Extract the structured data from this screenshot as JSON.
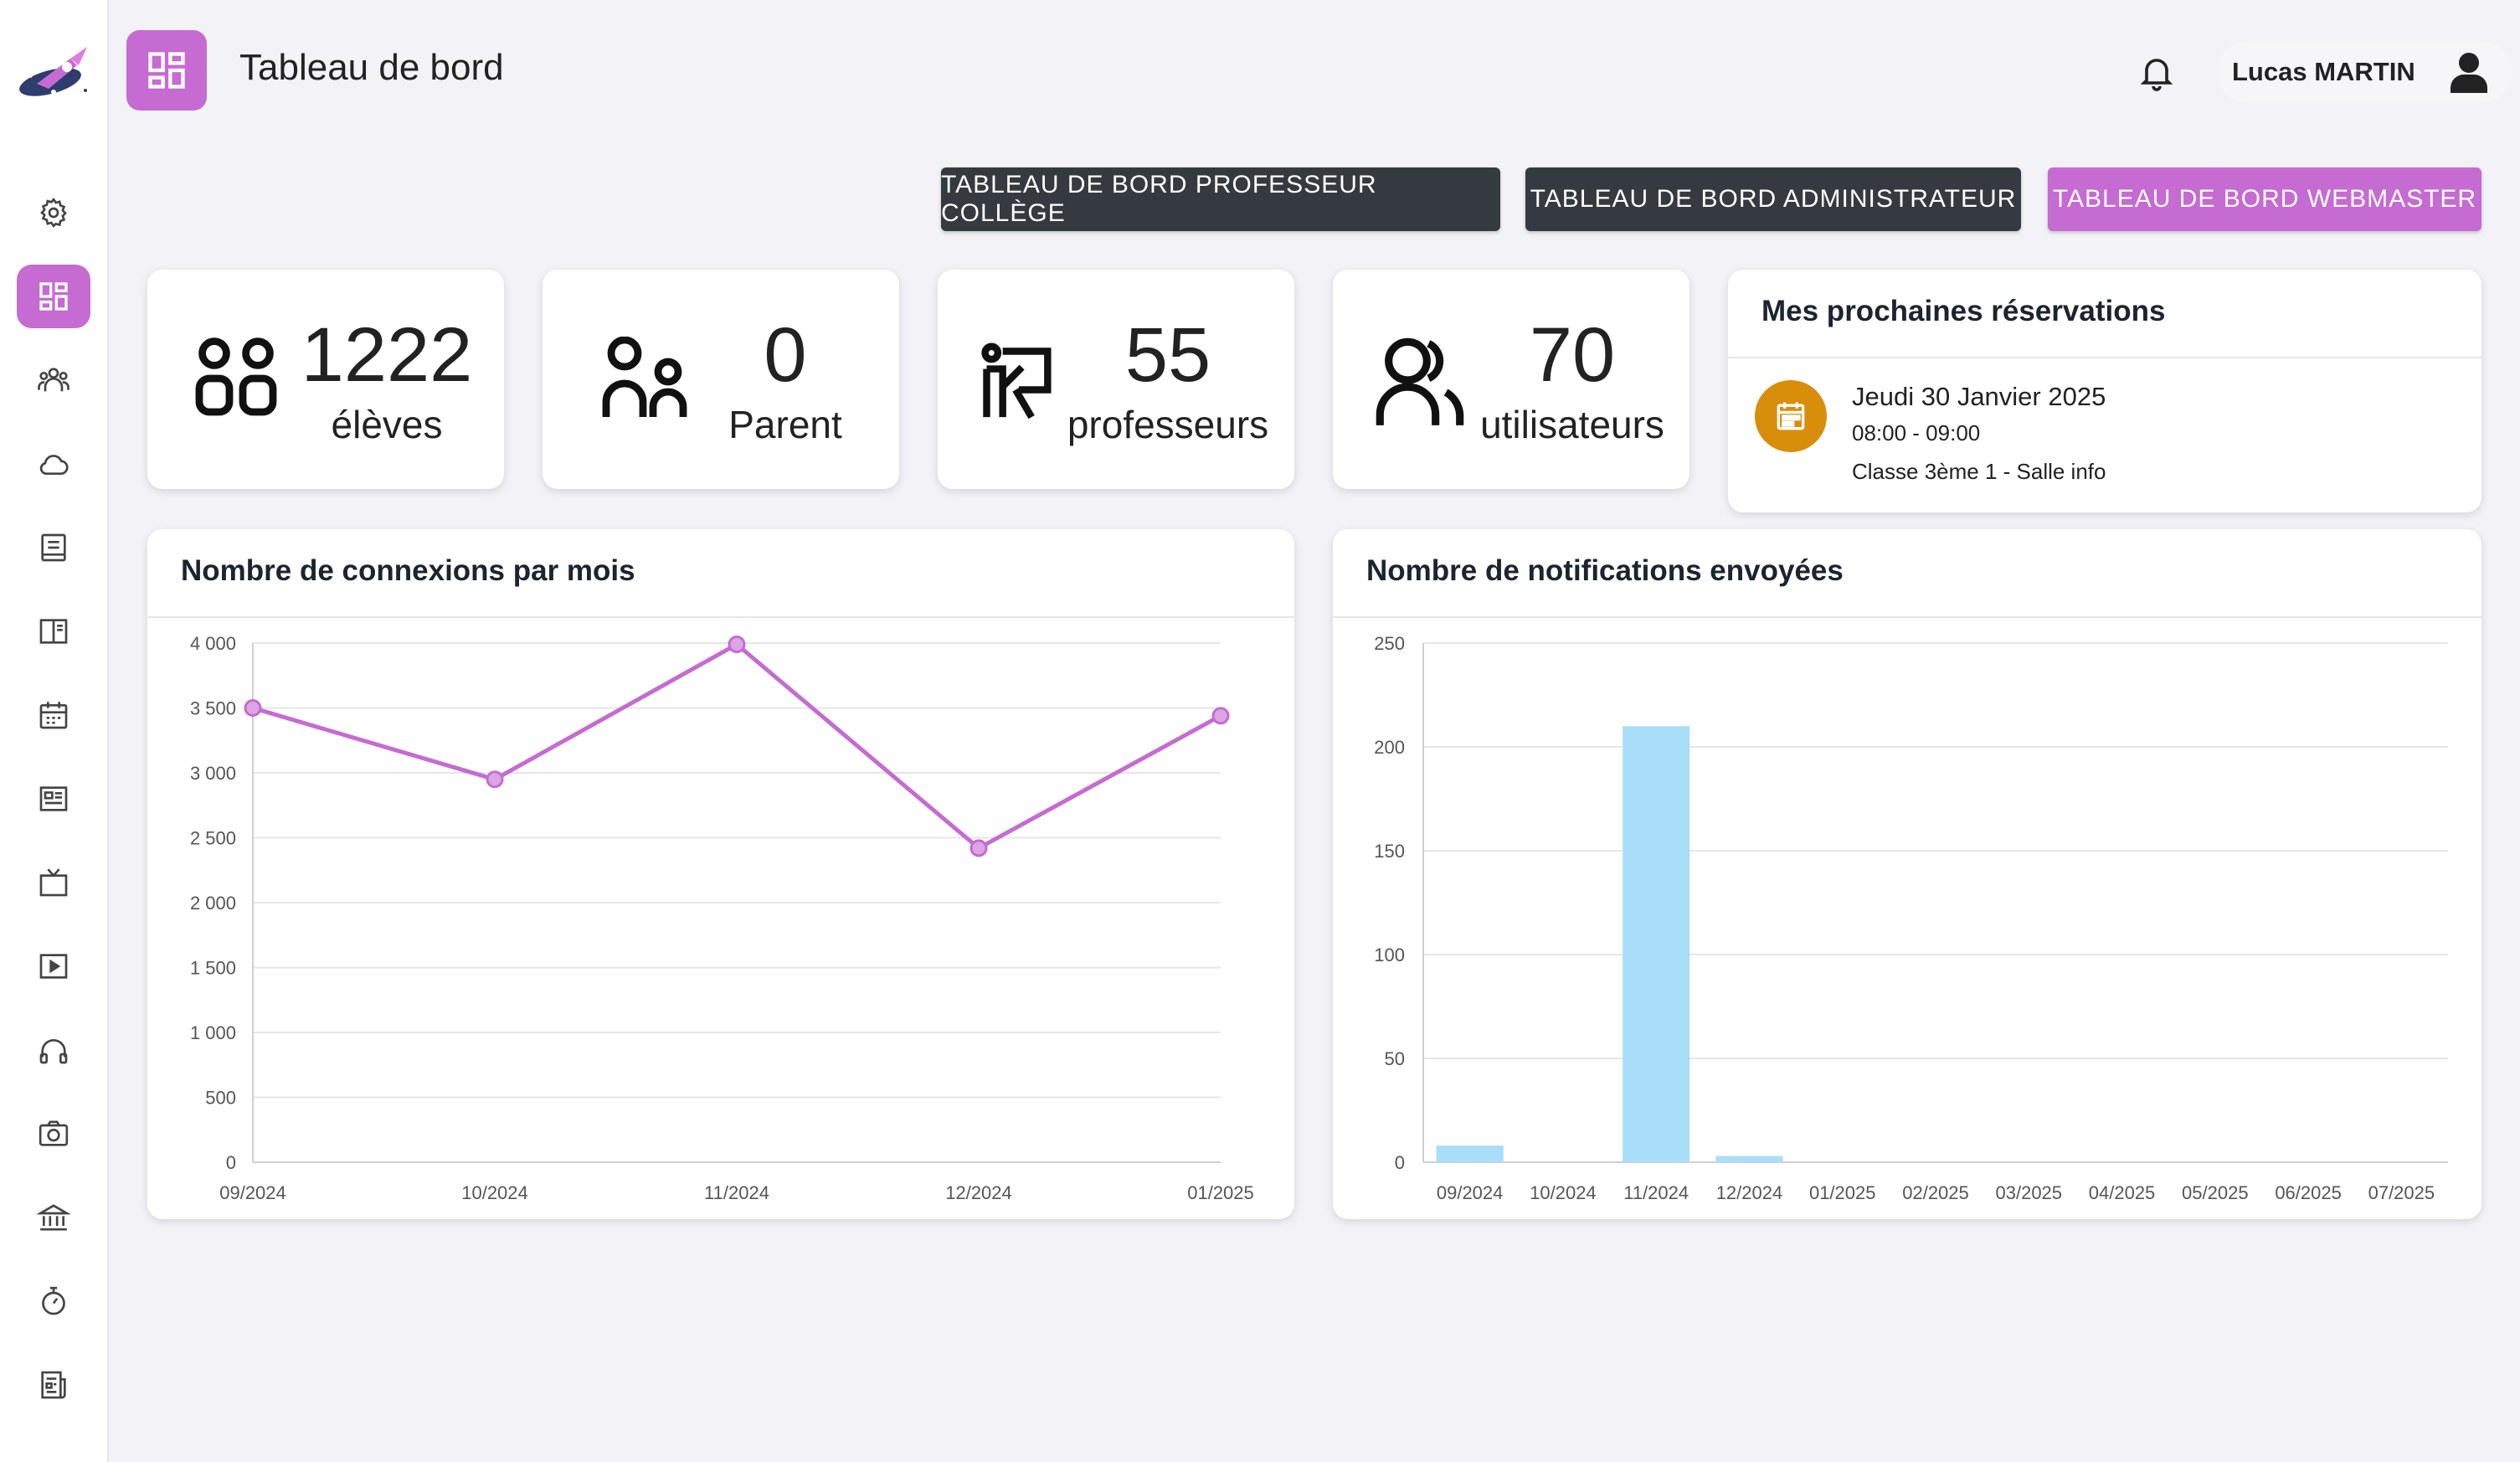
{
  "header": {
    "title": "Tableau de bord",
    "user_name": "Lucas MARTIN"
  },
  "sidebar": {
    "items": [
      {
        "icon": "gear-icon"
      },
      {
        "icon": "dashboard-icon",
        "active": true
      },
      {
        "icon": "users-icon"
      },
      {
        "icon": "cloud-icon"
      },
      {
        "icon": "document-icon"
      },
      {
        "icon": "book-icon"
      },
      {
        "icon": "calendar-icon"
      },
      {
        "icon": "newspaper-icon"
      },
      {
        "icon": "tv-icon"
      },
      {
        "icon": "play-icon"
      },
      {
        "icon": "headphones-icon"
      },
      {
        "icon": "camera-icon"
      },
      {
        "icon": "bank-icon"
      },
      {
        "icon": "timer-icon"
      },
      {
        "icon": "news-icon"
      }
    ]
  },
  "buttons": {
    "prof": "TABLEAU DE BORD PROFESSEUR COLLÈGE",
    "admin": "TABLEAU DE BORD ADMINISTRATEUR",
    "webmaster": "TABLEAU DE BORD WEBMASTER"
  },
  "stats": {
    "eleves": {
      "value": "1222",
      "label": "élèves"
    },
    "parents": {
      "value": "0",
      "label": "Parent"
    },
    "professeurs": {
      "value": "55",
      "label": "professeurs"
    },
    "utilisateurs": {
      "value": "70",
      "label": "utilisateurs"
    }
  },
  "reservations": {
    "title": "Mes prochaines réservations",
    "items": [
      {
        "date": "Jeudi 30 Janvier 2025",
        "time": "08:00 - 09:00",
        "room": "Classe 3ème 1 - Salle info"
      }
    ]
  },
  "colors": {
    "accent": "#c56bd1",
    "dark_button": "#343a40",
    "reservation_icon": "#d98e0b",
    "line_series": "#c56bd1",
    "bar_series": "#a9def9"
  },
  "chart_data": [
    {
      "type": "line",
      "title": "Nombre de connexions par mois",
      "categories": [
        "09/2024",
        "10/2024",
        "11/2024",
        "12/2024",
        "01/2025"
      ],
      "series": [
        {
          "values": [
            3500,
            2950,
            3990,
            2420,
            3440
          ]
        }
      ],
      "ylim": [
        0,
        4000
      ],
      "yticks": [
        "0",
        "500",
        "1 000",
        "1 500",
        "2 000",
        "2 500",
        "3 000",
        "3 500",
        "4 000"
      ],
      "grid": true,
      "legend": "none"
    },
    {
      "type": "bar",
      "title": "Nombre de notifications envoyées",
      "categories": [
        "09/2024",
        "10/2024",
        "11/2024",
        "12/2024",
        "01/2025",
        "02/2025",
        "03/2025",
        "04/2025",
        "05/2025",
        "06/2025",
        "07/2025"
      ],
      "series": [
        {
          "values": [
            8,
            0,
            210,
            3,
            0,
            0,
            0,
            0,
            0,
            0,
            0
          ]
        }
      ],
      "ylim": [
        0,
        250
      ],
      "yticks": [
        "0",
        "50",
        "100",
        "150",
        "200",
        "250"
      ],
      "grid": true,
      "legend": "none"
    }
  ]
}
